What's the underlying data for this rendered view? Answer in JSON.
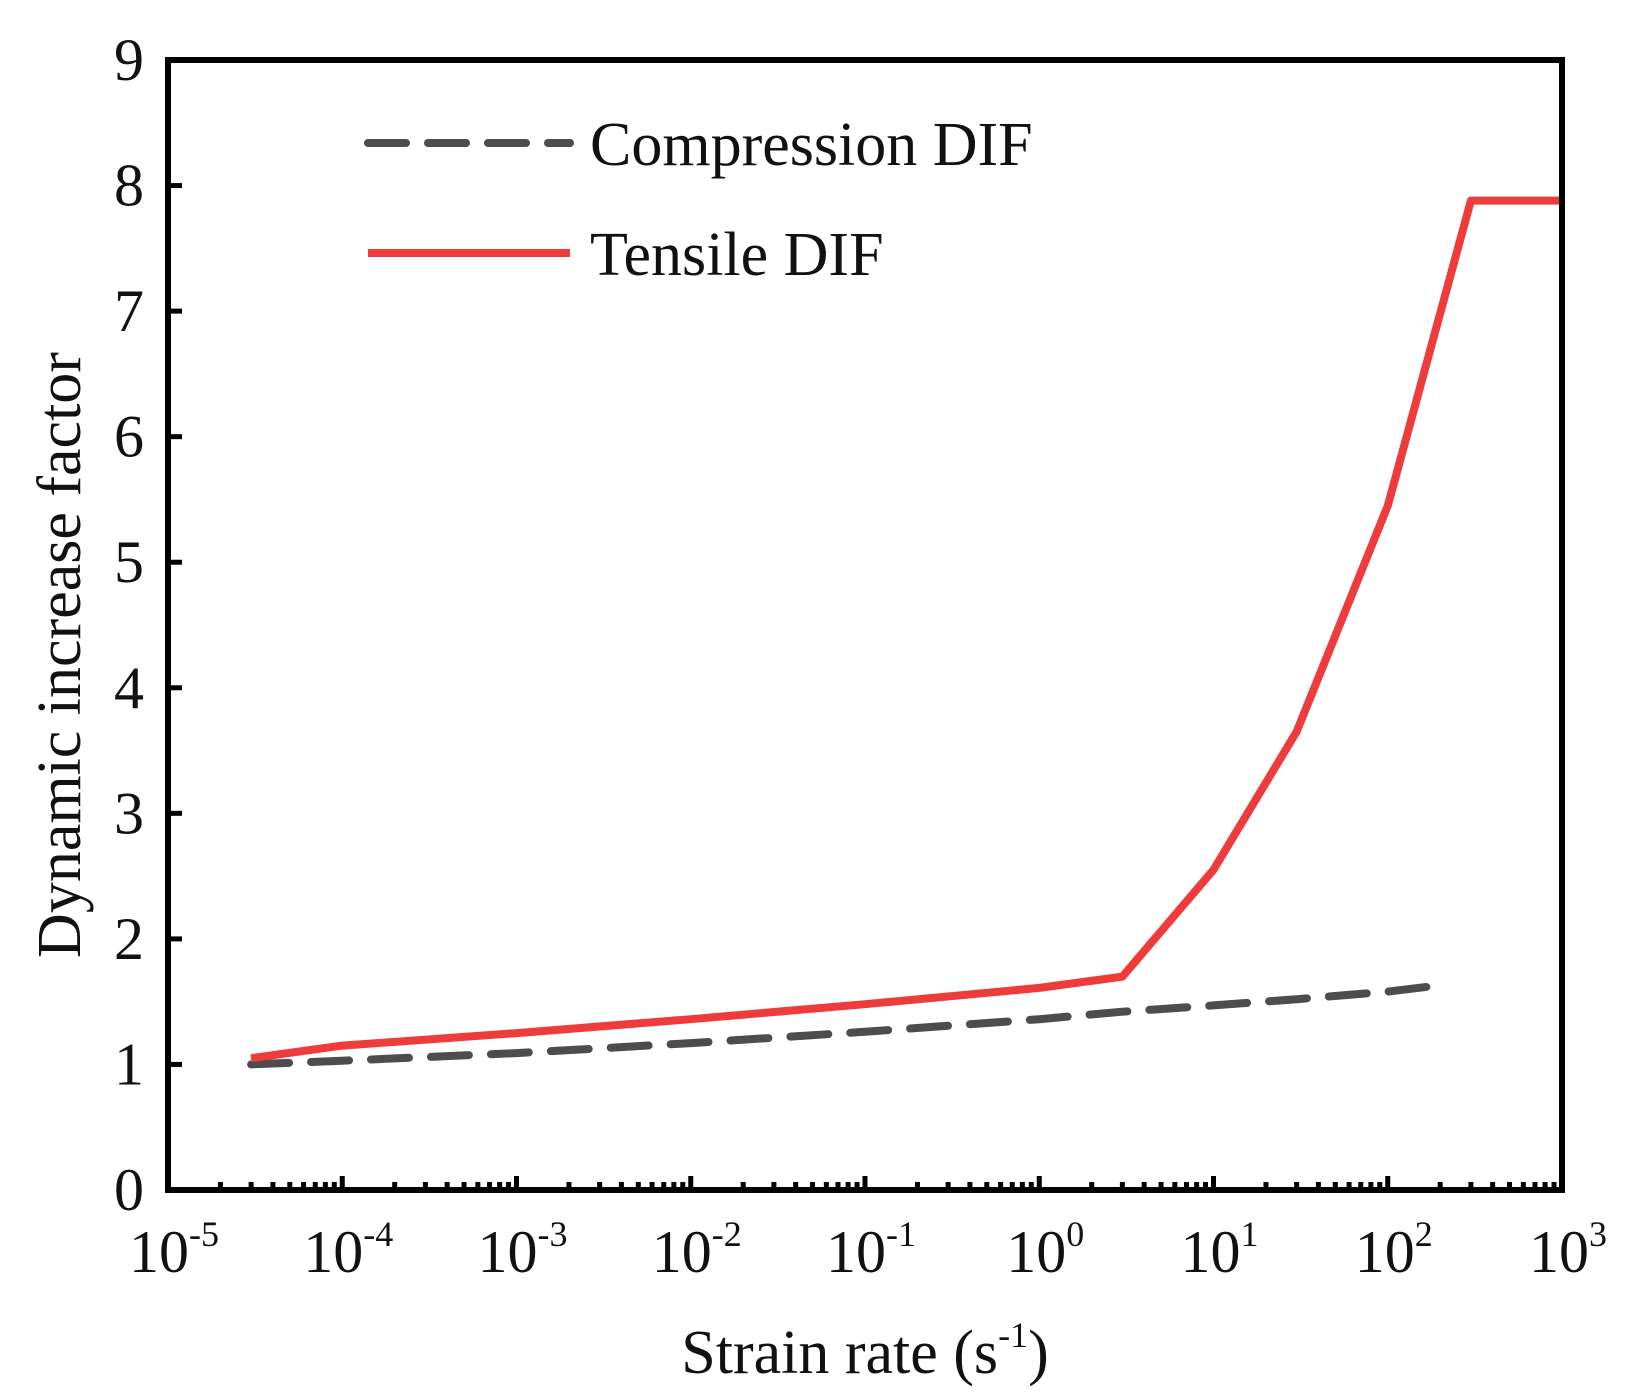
{
  "chart_data": {
    "type": "line",
    "title": "",
    "xlabel": "Strain rate (s⁻¹)",
    "xlabel_parts": {
      "base": "Strain rate (s",
      "exp": "-1",
      "close": ")"
    },
    "ylabel": "Dynamic increase factor",
    "x_scale": "log",
    "xlim": [
      1e-05,
      1000
    ],
    "ylim": [
      0,
      9
    ],
    "x_ticks": [
      {
        "base": "10",
        "exp": "-5",
        "value": 1e-05
      },
      {
        "base": "10",
        "exp": "-4",
        "value": 0.0001
      },
      {
        "base": "10",
        "exp": "-3",
        "value": 0.001
      },
      {
        "base": "10",
        "exp": "-2",
        "value": 0.01
      },
      {
        "base": "10",
        "exp": "-1",
        "value": 0.1
      },
      {
        "base": "10",
        "exp": "0",
        "value": 1
      },
      {
        "base": "10",
        "exp": "1",
        "value": 10
      },
      {
        "base": "10",
        "exp": "2",
        "value": 100
      },
      {
        "base": "10",
        "exp": "3",
        "value": 1000
      }
    ],
    "y_ticks": [
      "0",
      "1",
      "2",
      "3",
      "4",
      "5",
      "6",
      "7",
      "8",
      "9"
    ],
    "legend": {
      "placement": "top-left"
    },
    "series": [
      {
        "name": "Compression DIF",
        "style": "dashed",
        "color": "#4d4d4d",
        "x": [
          3e-05,
          0.0001,
          0.001,
          0.01,
          0.1,
          1,
          3,
          10,
          30,
          100,
          200
        ],
        "y": [
          1.0,
          1.03,
          1.09,
          1.17,
          1.26,
          1.36,
          1.42,
          1.47,
          1.52,
          1.58,
          1.63
        ]
      },
      {
        "name": "Tensile DIF",
        "style": "solid",
        "color": "#ee3b3b",
        "x": [
          3e-05,
          0.0001,
          0.001,
          0.01,
          0.1,
          1,
          3,
          10,
          30,
          100,
          300,
          1000
        ],
        "y": [
          1.05,
          1.15,
          1.25,
          1.36,
          1.48,
          1.61,
          1.7,
          2.55,
          3.65,
          5.45,
          7.88,
          7.88
        ]
      }
    ]
  }
}
